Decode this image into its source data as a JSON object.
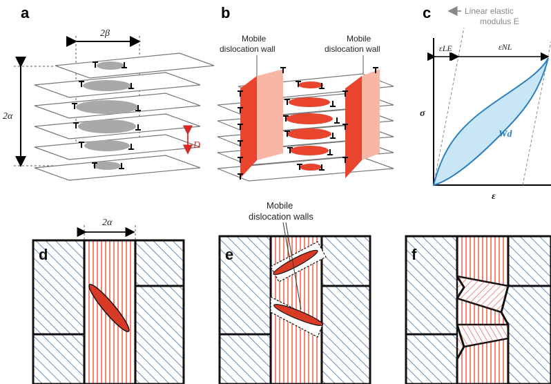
{
  "panels": {
    "a": {
      "letter": "a",
      "beta_label": "2β",
      "alpha_label": "2α",
      "d_label": "D"
    },
    "b": {
      "letter": "b",
      "wall_label_left_line1": "Mobile",
      "wall_label_left_line2": "dislocation wall",
      "wall_label_right_line1": "Mobile",
      "wall_label_right_line2": "dislocation wall"
    },
    "c": {
      "letter": "c",
      "elastic_line1": "Linear elastic",
      "elastic_line2": "modulus E",
      "eps_le": "εLE",
      "eps_nl": "εNL",
      "sigma": "σ",
      "epsilon": "ε",
      "wd": "Wd"
    },
    "d": {
      "letter": "d",
      "alpha_label": "2α"
    },
    "e": {
      "letter": "e",
      "walls_line1": "Mobile",
      "walls_line2": "dislocation walls"
    },
    "f": {
      "letter": "f"
    }
  },
  "colors": {
    "red": "#e8442e",
    "light_red": "#f7b6a6",
    "gray_fill": "#a9a9a9",
    "blue_hatch": "#4a6fa5",
    "light_blue": "#c9e6f6",
    "curve_blue": "#2a7fc0"
  }
}
